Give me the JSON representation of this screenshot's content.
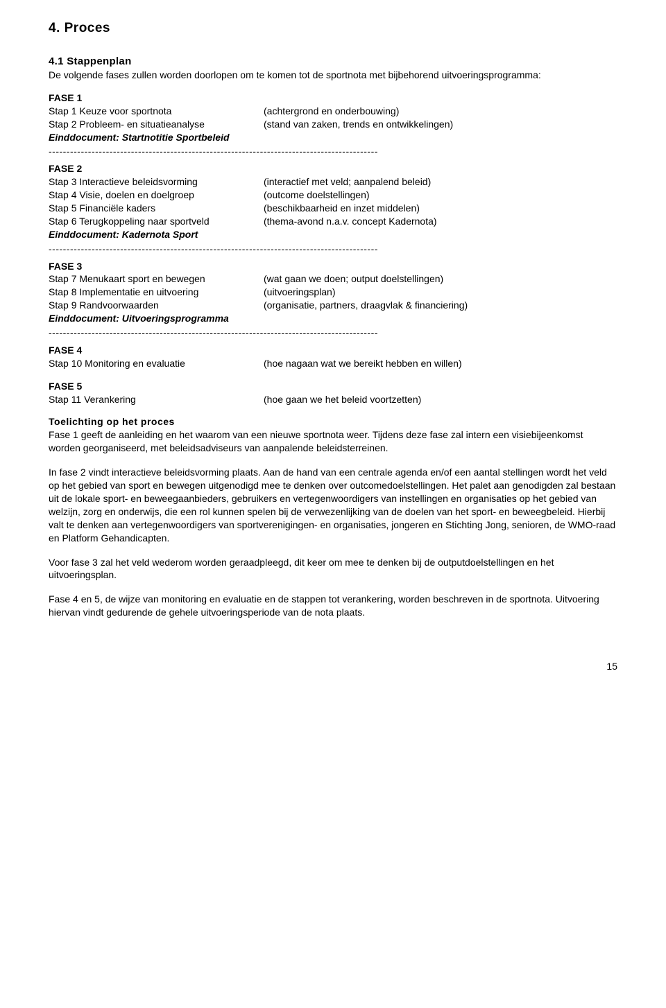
{
  "heading1": "4. Proces",
  "heading2": "4.1 Stappenplan",
  "intro": "De volgende fases zullen worden doorlopen om te komen tot de sportnota met bijbehorend uitvoeringsprogramma:",
  "dashes": "--------------------------------------------------------------------------------------------",
  "fase1": {
    "title": "FASE 1",
    "rows": [
      {
        "l": "Stap 1 Keuze voor sportnota",
        "r": "(achtergrond en onderbouwing)"
      },
      {
        "l": "Stap 2 Probleem- en situatieanalyse",
        "r": "(stand van zaken, trends en ontwikkelingen)"
      }
    ],
    "endoc": "Einddocument: Startnotitie Sportbeleid"
  },
  "fase2": {
    "title": "FASE 2",
    "rows": [
      {
        "l": "Stap 3 Interactieve beleidsvorming",
        "r": "(interactief met veld; aanpalend beleid)"
      },
      {
        "l": "Stap 4 Visie, doelen en doelgroep",
        "r": "(outcome doelstellingen)"
      },
      {
        "l": "Stap 5 Financiële kaders",
        "r": "(beschikbaarheid en inzet middelen)"
      },
      {
        "l": "Stap 6 Terugkoppeling naar sportveld",
        "r": "(thema-avond n.a.v. concept Kadernota)"
      }
    ],
    "endoc": "Einddocument: Kadernota Sport"
  },
  "fase3": {
    "title": "FASE 3",
    "rows": [
      {
        "l": "Stap 7 Menukaart sport en bewegen",
        "r": "(wat gaan we doen; output doelstellingen)"
      },
      {
        "l": "Stap 8 Implementatie en uitvoering",
        "r": "(uitvoeringsplan)"
      },
      {
        "l": "Stap 9 Randvoorwaarden",
        "r": "(organisatie, partners, draagvlak & financiering)"
      }
    ],
    "endoc": "Einddocument: Uitvoeringsprogramma"
  },
  "fase4": {
    "title": "FASE 4",
    "rows": [
      {
        "l": "Stap 10 Monitoring en evaluatie",
        "r": "(hoe nagaan wat we bereikt hebben en willen)"
      }
    ]
  },
  "fase5": {
    "title": "FASE 5",
    "rows": [
      {
        "l": "Stap 11 Verankering",
        "r": "(hoe gaan we het beleid voortzetten)"
      }
    ]
  },
  "toelichting_heading": "Toelichting op het proces",
  "paragraphs": [
    "Fase 1 geeft de aanleiding en het waarom van een nieuwe sportnota weer. Tijdens deze fase zal intern een visiebijeenkomst worden georganiseerd, met beleidsadviseurs van aanpalende beleidsterreinen.",
    "In fase 2 vindt interactieve beleidsvorming plaats. Aan de hand van een centrale agenda en/of een aantal stellingen wordt het veld op het gebied van sport en bewegen uitgenodigd mee te denken over outcomedoelstellingen. Het palet aan genodigden zal bestaan uit de lokale sport- en beweegaanbieders, gebruikers en vertegenwoordigers van instellingen en organisaties op het gebied van welzijn, zorg en onderwijs, die een rol kunnen spelen bij de verwezenlijking van de doelen van het sport- en beweegbeleid. Hierbij valt te denken aan vertegenwoordigers van sportverenigingen- en organisaties, jongeren en Stichting Jong, senioren, de WMO-raad en Platform Gehandicapten.",
    "Voor fase 3 zal het veld wederom worden geraadpleegd, dit keer om mee te denken bij de outputdoelstellingen en het uitvoeringsplan.",
    "Fase 4 en 5, de wijze van monitoring en evaluatie en de stappen tot verankering, worden beschreven in de sportnota. Uitvoering hiervan vindt gedurende de gehele uitvoeringsperiode van de nota plaats."
  ],
  "page_number": "15"
}
